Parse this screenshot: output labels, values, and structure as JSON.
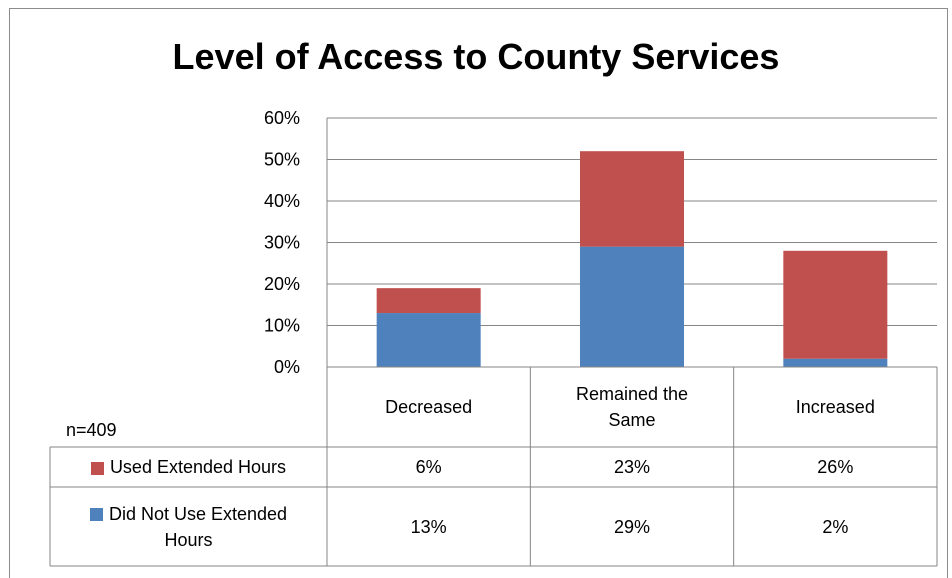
{
  "chart_data": {
    "type": "bar",
    "stacked": true,
    "title": "Level of Access to County Services",
    "categories": [
      "Decreased",
      "Remained the Same",
      "Increased"
    ],
    "category_lines": [
      [
        "Decreased"
      ],
      [
        "Remained the",
        "Same"
      ],
      [
        "Increased"
      ]
    ],
    "series": [
      {
        "name": "Did Not Use Extended Hours",
        "name_lines": [
          "Did Not Use Extended",
          "Hours"
        ],
        "values": [
          13,
          29,
          2
        ],
        "labels": [
          "13%",
          "29%",
          "2%"
        ],
        "color": "#4f81bd"
      },
      {
        "name": "Used Extended Hours",
        "name_lines": [
          "Used Extended Hours"
        ],
        "values": [
          6,
          23,
          26
        ],
        "labels": [
          "6%",
          "23%",
          "26%"
        ],
        "color": "#c0504d"
      }
    ],
    "yticks": [
      "0%",
      "10%",
      "20%",
      "30%",
      "40%",
      "50%",
      "60%"
    ],
    "ylim": [
      0,
      60
    ],
    "grid": true,
    "data_table": true,
    "note": "n=409"
  }
}
